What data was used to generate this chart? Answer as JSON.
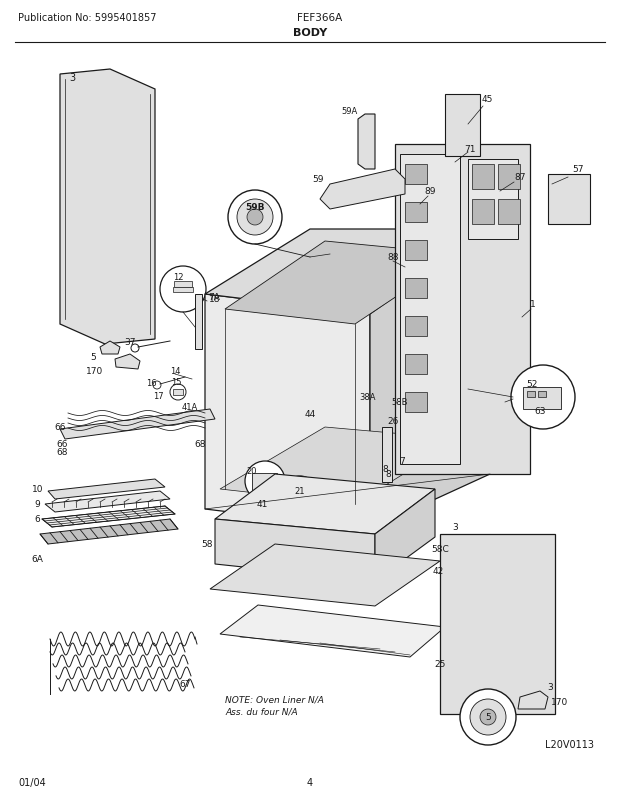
{
  "title": "BODY",
  "pub_no": "Publication No: 5995401857",
  "model": "FEF366A",
  "date": "01/04",
  "page": "4",
  "diagram_label": "L20V0113",
  "note_line1": "NOTE: Oven Liner N/A",
  "note_line2": "Ass. du four N/A",
  "bg_color": "#ffffff",
  "line_color": "#1a1a1a",
  "fig_width": 6.2,
  "fig_height": 8.03,
  "dpi": 100
}
